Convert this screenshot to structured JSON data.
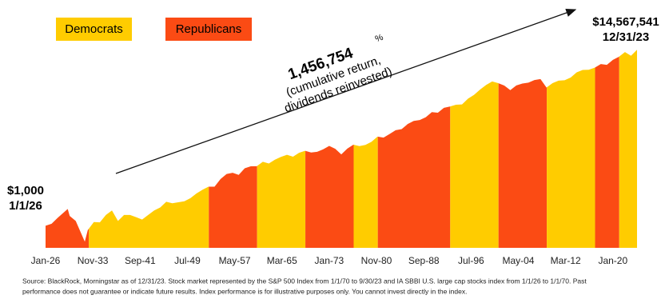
{
  "chart_data": {
    "type": "area",
    "log_scale": true,
    "legend": [
      {
        "name": "Democrats",
        "color": "#ffcc00"
      },
      {
        "name": "Republicans",
        "color": "#fb4b14"
      }
    ],
    "start_label": [
      "$1,000",
      "1/1/26"
    ],
    "end_label": [
      "$14,567,541",
      "12/31/23"
    ],
    "annotation": {
      "value": "1,456,754",
      "unit": "%",
      "lines": [
        "(cumulative return,",
        "dividends reinvested)"
      ]
    },
    "source": [
      "Source: BlackRock, Morningstar as of 12/31/23. Stock market represented by the S&P 500 Index from 1/1/70 to 9/30/23 and IA SBBI U.S. large cap stocks index from 1/1/26 to 1/1/70. Past",
      "performance does not guarantee or indicate future results. Index performance is for illustrative purposes only. You cannot invest directly in the index."
    ],
    "xlim": [
      1926,
      2024
    ],
    "ylim": [
      300,
      20000000
    ],
    "xticks": [
      {
        "value": 1926,
        "label": "Jan-26"
      },
      {
        "value": 1933.83,
        "label": "Nov-33"
      },
      {
        "value": 1941.67,
        "label": "Sep-41"
      },
      {
        "value": 1949.5,
        "label": "Jul-49"
      },
      {
        "value": 1957.33,
        "label": "May-57"
      },
      {
        "value": 1965.17,
        "label": "Mar-65"
      },
      {
        "value": 1973,
        "label": "Jan-73"
      },
      {
        "value": 1980.83,
        "label": "Nov-80"
      },
      {
        "value": 1988.67,
        "label": "Sep-88"
      },
      {
        "value": 1996.5,
        "label": "Jul-96"
      },
      {
        "value": 2004.33,
        "label": "May-04"
      },
      {
        "value": 2012.17,
        "label": "Mar-12"
      },
      {
        "value": 2020,
        "label": "Jan-20"
      }
    ],
    "periods": [
      {
        "start": 1926,
        "end": 1933.17,
        "legend": 1
      },
      {
        "start": 1933.17,
        "end": 1953.05,
        "legend": 0
      },
      {
        "start": 1953.05,
        "end": 1961.05,
        "legend": 1
      },
      {
        "start": 1961.05,
        "end": 1969.05,
        "legend": 0
      },
      {
        "start": 1969.05,
        "end": 1977.05,
        "legend": 1
      },
      {
        "start": 1977.05,
        "end": 1981.05,
        "legend": 0
      },
      {
        "start": 1981.05,
        "end": 1993.05,
        "legend": 1
      },
      {
        "start": 1993.05,
        "end": 2001.05,
        "legend": 0
      },
      {
        "start": 2001.05,
        "end": 2009.05,
        "legend": 1
      },
      {
        "start": 2009.05,
        "end": 2017.05,
        "legend": 0
      },
      {
        "start": 2017.05,
        "end": 2021.05,
        "legend": 1
      },
      {
        "start": 2021.05,
        "end": 2024,
        "legend": 0
      }
    ],
    "x": [
      1926,
      1927,
      1928,
      1929.67,
      1930,
      1931,
      1932.5,
      1933,
      1934,
      1935,
      1936,
      1937,
      1938,
      1939,
      1940,
      1941,
      1942,
      1943,
      1944,
      1945,
      1946,
      1947,
      1948,
      1949,
      1950,
      1951,
      1952,
      1953,
      1954,
      1955,
      1956,
      1957,
      1958,
      1959,
      1960,
      1961,
      1962,
      1963,
      1964,
      1965,
      1966,
      1967,
      1968,
      1969,
      1970,
      1971,
      1972,
      1973,
      1974,
      1975,
      1976,
      1977,
      1978,
      1979,
      1980,
      1981,
      1982,
      1983,
      1984,
      1985,
      1986,
      1987,
      1988,
      1989,
      1990,
      1991,
      1992,
      1993,
      1994,
      1995,
      1996,
      1997,
      1998,
      1999,
      2000,
      2001,
      2002,
      2003,
      2004,
      2005,
      2006,
      2007,
      2008,
      2009,
      2010,
      2011,
      2012,
      2013,
      2014,
      2015,
      2016,
      2017,
      2018,
      2019,
      2020,
      2021,
      2022,
      2023,
      2024
    ],
    "values": [
      1000,
      1116,
      1535,
      2500,
      1700,
      1300,
      420,
      790,
      1220,
      1200,
      1800,
      2300,
      1300,
      1800,
      1800,
      1600,
      1400,
      1800,
      2300,
      2700,
      3700,
      3400,
      3600,
      3800,
      4500,
      5800,
      7100,
      8400,
      8400,
      12800,
      16800,
      17900,
      16000,
      22900,
      25500,
      25700,
      32600,
      29700,
      36500,
      42500,
      47800,
      43000,
      53300,
      59200,
      54200,
      56300,
      64400,
      77600,
      66200,
      48700,
      66800,
      82700,
      76800,
      81800,
      96900,
      128400,
      122000,
      148200,
      181800,
      193200,
      254600,
      302100,
      317900,
      370500,
      487900,
      472500,
      616500,
      663500,
      730400,
      740000,
      1017800,
      1251500,
      1668900,
      2146000,
      2597600,
      2361000,
      2080000,
      1620300,
      2085500,
      2312500,
      2426000,
      2809000,
      2963400,
      1867000,
      2361300,
      2717000,
      2774000,
      3218000,
      4260000,
      4843000,
      4910000,
      5497000,
      6698000,
      6404000,
      8422000,
      9972000,
      12834000,
      10510000,
      14567541
    ]
  }
}
